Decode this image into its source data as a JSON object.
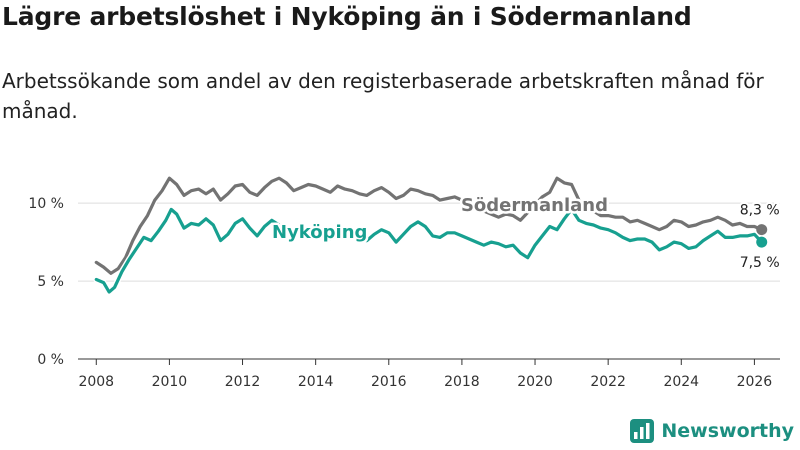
{
  "title": "Lägre arbetslöshet i Nyköping än i Södermanland",
  "subtitle": "Arbetssökande som andel av den registerbaserade arbetskraften månad för månad.",
  "brand": {
    "name": "Newsworthy"
  },
  "colors": {
    "nykoping": "#17a090",
    "sodermanland": "#737373",
    "grid": "#dddddd",
    "axis": "#333333"
  },
  "chart_data": {
    "type": "line",
    "title": "Lägre arbetslöshet i Nyköping än i Södermanland",
    "xlabel": "",
    "ylabel": "",
    "xlim": [
      2007.5,
      2026.7
    ],
    "ylim": [
      0,
      12
    ],
    "yticks": [
      {
        "value": 0,
        "label": "0 %"
      },
      {
        "value": 5,
        "label": "5 %"
      },
      {
        "value": 10,
        "label": "10 %"
      }
    ],
    "xticks": [
      2008,
      2010,
      2012,
      2014,
      2016,
      2018,
      2020,
      2022,
      2024,
      2026
    ],
    "grid": true,
    "series": [
      {
        "name": "Södermanland",
        "color": "#737373",
        "end_label": "8,3 %",
        "end_value": 8.3,
        "points": [
          [
            2008.0,
            6.2
          ],
          [
            2008.2,
            5.9
          ],
          [
            2008.4,
            5.5
          ],
          [
            2008.6,
            5.8
          ],
          [
            2008.8,
            6.5
          ],
          [
            2009.0,
            7.6
          ],
          [
            2009.2,
            8.5
          ],
          [
            2009.4,
            9.2
          ],
          [
            2009.6,
            10.2
          ],
          [
            2009.8,
            10.8
          ],
          [
            2010.0,
            11.6
          ],
          [
            2010.2,
            11.2
          ],
          [
            2010.4,
            10.5
          ],
          [
            2010.6,
            10.8
          ],
          [
            2010.8,
            10.9
          ],
          [
            2011.0,
            10.6
          ],
          [
            2011.2,
            10.9
          ],
          [
            2011.4,
            10.2
          ],
          [
            2011.6,
            10.6
          ],
          [
            2011.8,
            11.1
          ],
          [
            2012.0,
            11.2
          ],
          [
            2012.2,
            10.7
          ],
          [
            2012.4,
            10.5
          ],
          [
            2012.6,
            11.0
          ],
          [
            2012.8,
            11.4
          ],
          [
            2013.0,
            11.6
          ],
          [
            2013.2,
            11.3
          ],
          [
            2013.4,
            10.8
          ],
          [
            2013.6,
            11.0
          ],
          [
            2013.8,
            11.2
          ],
          [
            2014.0,
            11.1
          ],
          [
            2014.2,
            10.9
          ],
          [
            2014.4,
            10.7
          ],
          [
            2014.6,
            11.1
          ],
          [
            2014.8,
            10.9
          ],
          [
            2015.0,
            10.8
          ],
          [
            2015.2,
            10.6
          ],
          [
            2015.4,
            10.5
          ],
          [
            2015.6,
            10.8
          ],
          [
            2015.8,
            11.0
          ],
          [
            2016.0,
            10.7
          ],
          [
            2016.2,
            10.3
          ],
          [
            2016.4,
            10.5
          ],
          [
            2016.6,
            10.9
          ],
          [
            2016.8,
            10.8
          ],
          [
            2017.0,
            10.6
          ],
          [
            2017.2,
            10.5
          ],
          [
            2017.4,
            10.2
          ],
          [
            2017.6,
            10.3
          ],
          [
            2017.8,
            10.4
          ],
          [
            2018.0,
            10.2
          ],
          [
            2018.2,
            9.8
          ],
          [
            2018.4,
            9.6
          ],
          [
            2018.6,
            9.5
          ],
          [
            2018.8,
            9.3
          ],
          [
            2019.0,
            9.1
          ],
          [
            2019.2,
            9.3
          ],
          [
            2019.4,
            9.2
          ],
          [
            2019.6,
            8.9
          ],
          [
            2019.8,
            9.4
          ],
          [
            2020.0,
            9.9
          ],
          [
            2020.2,
            10.4
          ],
          [
            2020.4,
            10.7
          ],
          [
            2020.6,
            11.6
          ],
          [
            2020.8,
            11.3
          ],
          [
            2021.0,
            11.2
          ],
          [
            2021.2,
            10.2
          ],
          [
            2021.4,
            9.6
          ],
          [
            2021.6,
            9.5
          ],
          [
            2021.8,
            9.2
          ],
          [
            2022.0,
            9.2
          ],
          [
            2022.2,
            9.1
          ],
          [
            2022.4,
            9.1
          ],
          [
            2022.6,
            8.8
          ],
          [
            2022.8,
            8.9
          ],
          [
            2023.0,
            8.7
          ],
          [
            2023.2,
            8.5
          ],
          [
            2023.4,
            8.3
          ],
          [
            2023.6,
            8.5
          ],
          [
            2023.8,
            8.9
          ],
          [
            2024.0,
            8.8
          ],
          [
            2024.2,
            8.5
          ],
          [
            2024.4,
            8.6
          ],
          [
            2024.6,
            8.8
          ],
          [
            2024.8,
            8.9
          ],
          [
            2025.0,
            9.1
          ],
          [
            2025.2,
            8.9
          ],
          [
            2025.4,
            8.6
          ],
          [
            2025.6,
            8.7
          ],
          [
            2025.8,
            8.5
          ],
          [
            2026.0,
            8.5
          ],
          [
            2026.2,
            8.3
          ]
        ]
      },
      {
        "name": "Nyköping",
        "color": "#17a090",
        "end_label": "7,5 %",
        "end_value": 7.5,
        "points": [
          [
            2008.0,
            5.1
          ],
          [
            2008.2,
            4.9
          ],
          [
            2008.35,
            4.3
          ],
          [
            2008.5,
            4.6
          ],
          [
            2008.7,
            5.6
          ],
          [
            2008.9,
            6.4
          ],
          [
            2009.1,
            7.1
          ],
          [
            2009.3,
            7.8
          ],
          [
            2009.5,
            7.6
          ],
          [
            2009.7,
            8.2
          ],
          [
            2009.9,
            8.9
          ],
          [
            2010.05,
            9.6
          ],
          [
            2010.2,
            9.3
          ],
          [
            2010.4,
            8.4
          ],
          [
            2010.6,
            8.7
          ],
          [
            2010.8,
            8.6
          ],
          [
            2011.0,
            9.0
          ],
          [
            2011.2,
            8.6
          ],
          [
            2011.4,
            7.6
          ],
          [
            2011.6,
            8.0
          ],
          [
            2011.8,
            8.7
          ],
          [
            2012.0,
            9.0
          ],
          [
            2012.2,
            8.4
          ],
          [
            2012.4,
            7.9
          ],
          [
            2012.6,
            8.5
          ],
          [
            2012.8,
            8.9
          ],
          [
            2013.0,
            8.6
          ],
          [
            2013.2,
            8.1
          ],
          [
            2013.4,
            8.0
          ],
          [
            2013.6,
            8.4
          ],
          [
            2013.8,
            8.3
          ],
          [
            2014.0,
            8.2
          ],
          [
            2014.2,
            7.8
          ],
          [
            2014.4,
            7.7
          ],
          [
            2014.6,
            8.1
          ],
          [
            2014.8,
            8.3
          ],
          [
            2015.0,
            8.0
          ],
          [
            2015.2,
            7.6
          ],
          [
            2015.4,
            7.6
          ],
          [
            2015.6,
            8.0
          ],
          [
            2015.8,
            8.3
          ],
          [
            2016.0,
            8.1
          ],
          [
            2016.2,
            7.5
          ],
          [
            2016.4,
            8.0
          ],
          [
            2016.6,
            8.5
          ],
          [
            2016.8,
            8.8
          ],
          [
            2017.0,
            8.5
          ],
          [
            2017.2,
            7.9
          ],
          [
            2017.4,
            7.8
          ],
          [
            2017.6,
            8.1
          ],
          [
            2017.8,
            8.1
          ],
          [
            2018.0,
            7.9
          ],
          [
            2018.2,
            7.7
          ],
          [
            2018.4,
            7.5
          ],
          [
            2018.6,
            7.3
          ],
          [
            2018.8,
            7.5
          ],
          [
            2019.0,
            7.4
          ],
          [
            2019.2,
            7.2
          ],
          [
            2019.4,
            7.3
          ],
          [
            2019.6,
            6.8
          ],
          [
            2019.8,
            6.5
          ],
          [
            2020.0,
            7.3
          ],
          [
            2020.2,
            7.9
          ],
          [
            2020.4,
            8.5
          ],
          [
            2020.6,
            8.3
          ],
          [
            2020.8,
            9.0
          ],
          [
            2021.0,
            9.6
          ],
          [
            2021.2,
            8.9
          ],
          [
            2021.4,
            8.7
          ],
          [
            2021.6,
            8.6
          ],
          [
            2021.8,
            8.4
          ],
          [
            2022.0,
            8.3
          ],
          [
            2022.2,
            8.1
          ],
          [
            2022.4,
            7.8
          ],
          [
            2022.6,
            7.6
          ],
          [
            2022.8,
            7.7
          ],
          [
            2023.0,
            7.7
          ],
          [
            2023.2,
            7.5
          ],
          [
            2023.4,
            7.0
          ],
          [
            2023.6,
            7.2
          ],
          [
            2023.8,
            7.5
          ],
          [
            2024.0,
            7.4
          ],
          [
            2024.2,
            7.1
          ],
          [
            2024.4,
            7.2
          ],
          [
            2024.6,
            7.6
          ],
          [
            2024.8,
            7.9
          ],
          [
            2025.0,
            8.2
          ],
          [
            2025.2,
            7.8
          ],
          [
            2025.4,
            7.8
          ],
          [
            2025.6,
            7.9
          ],
          [
            2025.8,
            7.9
          ],
          [
            2026.0,
            8.0
          ],
          [
            2026.2,
            7.5
          ]
        ]
      }
    ]
  }
}
